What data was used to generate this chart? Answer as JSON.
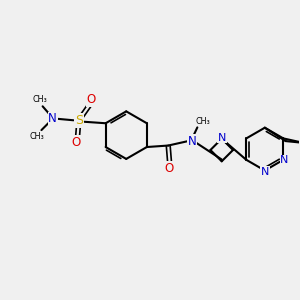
{
  "bg": "#f0f0f0",
  "bc": "#000000",
  "nc": "#0000cc",
  "oc": "#dd0000",
  "sc": "#ccaa00",
  "lw": 1.5,
  "lw2": 1.2,
  "fs": 7.0,
  "fss": 5.8,
  "figsize": [
    3.0,
    3.0
  ],
  "dpi": 100,
  "xlim": [
    0,
    10
  ],
  "ylim": [
    0,
    10
  ]
}
